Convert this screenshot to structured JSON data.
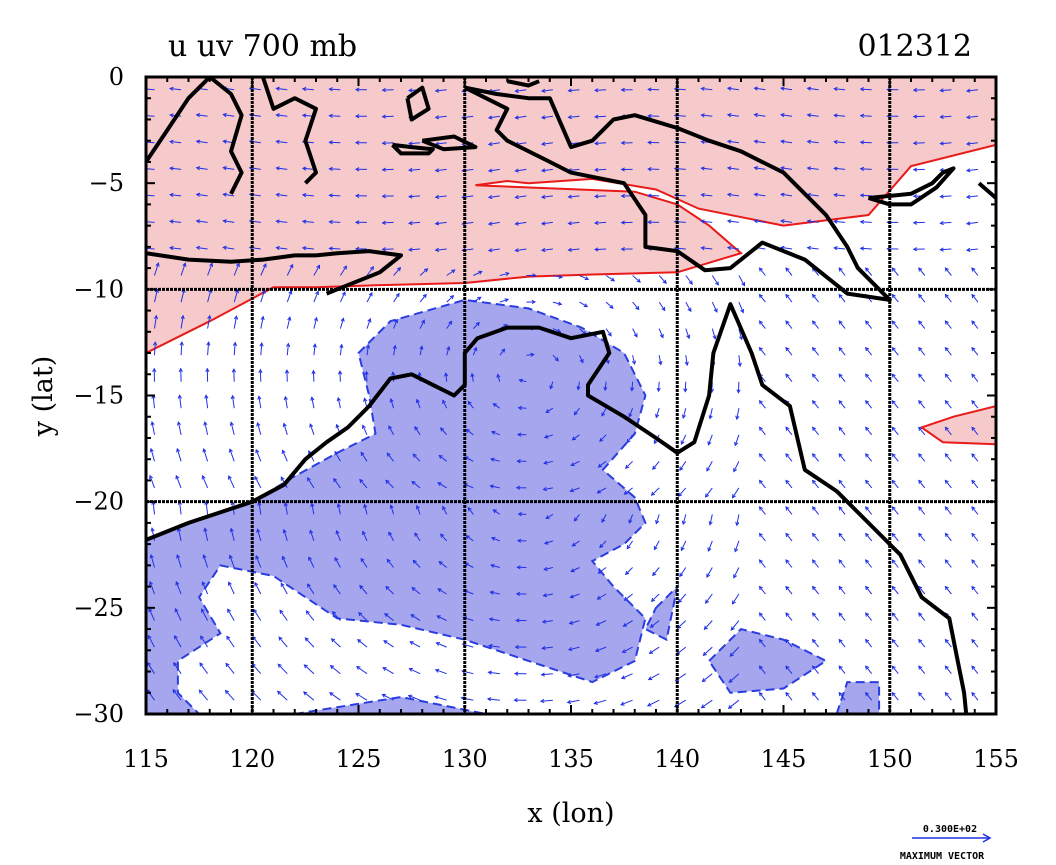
{
  "title_left": "u uv 700 mb",
  "title_right": "012312",
  "xlabel": "x (lon)",
  "ylabel": "y (lat)",
  "x_ticks": [
    115,
    120,
    125,
    130,
    135,
    140,
    145,
    150,
    155
  ],
  "y_ticks": [
    0,
    -5,
    -10,
    -15,
    -20,
    -25,
    -30
  ],
  "grid_x": [
    120,
    130,
    140,
    150
  ],
  "grid_y": [
    -10,
    -20
  ],
  "extent": {
    "lon": [
      115,
      155
    ],
    "lat": [
      -30,
      0
    ]
  },
  "legend": {
    "value": "0.300E+02",
    "label": "MAXIMUM VECTOR"
  },
  "colors": {
    "positive_fill": "#f6caca",
    "positive_contour": "#e81a1a",
    "negative_fill": "#a6a6ee",
    "negative_contour": "#2a3de0",
    "vectors": "#2030e6",
    "coastline": "#000000"
  },
  "map_data": {
    "type": "contour_vector_map",
    "field": "u",
    "vectors": "uv",
    "level": "700 mb",
    "positive_regions": [
      [
        [
          115,
          0
        ],
        [
          155,
          0
        ],
        [
          155,
          -3.2
        ],
        [
          151,
          -4.2
        ],
        [
          149,
          -6.5
        ],
        [
          145,
          -7.0
        ],
        [
          141,
          -6.2
        ],
        [
          139,
          -5.3
        ],
        [
          136,
          -4.8
        ],
        [
          133,
          -5.0
        ],
        [
          132,
          -4.9
        ],
        [
          130.5,
          -5.1
        ],
        [
          138,
          -5.4
        ],
        [
          140,
          -6.0
        ],
        [
          141.5,
          -7.0
        ],
        [
          143,
          -8.3
        ],
        [
          140,
          -9.2
        ],
        [
          136,
          -9.3
        ],
        [
          133,
          -9.4
        ],
        [
          130,
          -9.7
        ],
        [
          126,
          -9.8
        ],
        [
          123,
          -9.9
        ],
        [
          121,
          -9.9
        ],
        [
          118,
          -11.5
        ],
        [
          115,
          -13.0
        ]
      ],
      [
        [
          155,
          -15.5
        ],
        [
          153,
          -16.0
        ],
        [
          151.5,
          -16.5
        ],
        [
          152.5,
          -17.2
        ],
        [
          155,
          -17.3
        ]
      ]
    ],
    "negative_regions": [
      [
        [
          115,
          -21.8
        ],
        [
          117,
          -21.0
        ],
        [
          120,
          -20.0
        ],
        [
          122,
          -18.8
        ],
        [
          124,
          -17.7
        ],
        [
          125.8,
          -16.8
        ],
        [
          125.5,
          -15.0
        ],
        [
          125.0,
          -13.0
        ],
        [
          126.5,
          -11.5
        ],
        [
          130,
          -10.5
        ],
        [
          133,
          -10.9
        ],
        [
          135.5,
          -11.8
        ],
        [
          137.5,
          -13.0
        ],
        [
          138.5,
          -15.0
        ],
        [
          138.0,
          -16.8
        ],
        [
          136.5,
          -18.5
        ],
        [
          138,
          -19.8
        ],
        [
          138.5,
          -21.0
        ],
        [
          137.5,
          -22.0
        ],
        [
          136,
          -22.8
        ],
        [
          137,
          -24.0
        ],
        [
          138.5,
          -25.5
        ],
        [
          138,
          -27.5
        ],
        [
          136,
          -28.5
        ],
        [
          133,
          -27.5
        ],
        [
          130,
          -26.5
        ],
        [
          127,
          -25.8
        ],
        [
          124,
          -25.5
        ],
        [
          121,
          -23.5
        ],
        [
          118.5,
          -23.0
        ],
        [
          117.5,
          -24.5
        ],
        [
          118.5,
          -26.2
        ],
        [
          116.5,
          -27.5
        ],
        [
          116.5,
          -29.0
        ],
        [
          117.5,
          -30.0
        ],
        [
          115,
          -30.0
        ]
      ],
      [
        [
          141.5,
          -27.5
        ],
        [
          143,
          -26.0
        ],
        [
          145,
          -26.5
        ],
        [
          147,
          -27.5
        ],
        [
          145,
          -28.8
        ],
        [
          142.5,
          -29.0
        ]
      ],
      [
        [
          139,
          -25.0
        ],
        [
          140,
          -24.0
        ],
        [
          139.5,
          -26.5
        ],
        [
          138.5,
          -26.0
        ]
      ],
      [
        [
          147.5,
          -30.0
        ],
        [
          148,
          -28.5
        ],
        [
          149.5,
          -28.5
        ],
        [
          149.5,
          -30.0
        ]
      ],
      [
        [
          122,
          -30.0
        ],
        [
          127,
          -29.2
        ],
        [
          131,
          -30.0
        ]
      ]
    ],
    "coastlines": [
      [
        [
          115,
          -21.8
        ],
        [
          117,
          -21.0
        ],
        [
          120,
          -20.0
        ],
        [
          121.5,
          -19.2
        ],
        [
          122.5,
          -18.0
        ],
        [
          123.5,
          -17.2
        ],
        [
          124.5,
          -16.5
        ],
        [
          125.5,
          -15.5
        ],
        [
          126.5,
          -14.2
        ],
        [
          127.5,
          -14.0
        ],
        [
          128.5,
          -14.5
        ],
        [
          129.5,
          -15.0
        ],
        [
          130.0,
          -14.5
        ],
        [
          130.0,
          -13.0
        ],
        [
          130.6,
          -12.3
        ],
        [
          132,
          -11.8
        ],
        [
          133.5,
          -11.8
        ],
        [
          135,
          -12.3
        ],
        [
          136.5,
          -12.0
        ],
        [
          136.8,
          -13.0
        ],
        [
          135.8,
          -14.5
        ],
        [
          135.8,
          -15.0
        ],
        [
          137.5,
          -16.0
        ],
        [
          139,
          -17.0
        ],
        [
          140.0,
          -17.7
        ],
        [
          140.8,
          -17.2
        ],
        [
          141.5,
          -15.0
        ],
        [
          141.7,
          -13.0
        ],
        [
          142.5,
          -10.7
        ],
        [
          143.5,
          -13.0
        ],
        [
          144,
          -14.5
        ],
        [
          145.3,
          -15.5
        ],
        [
          146.0,
          -18.5
        ],
        [
          147.5,
          -19.5
        ],
        [
          149.5,
          -21.5
        ],
        [
          150.5,
          -22.5
        ],
        [
          151.5,
          -24.5
        ],
        [
          152.8,
          -25.5
        ],
        [
          153.2,
          -27.5
        ],
        [
          153.5,
          -29.0
        ],
        [
          153.6,
          -30.0
        ]
      ],
      [
        [
          115,
          -8.3
        ],
        [
          117,
          -8.6
        ],
        [
          119,
          -8.7
        ],
        [
          120.5,
          -8.6
        ],
        [
          122,
          -8.4
        ],
        [
          123,
          -8.4
        ],
        [
          124,
          -8.3
        ],
        [
          125.5,
          -8.2
        ],
        [
          127,
          -8.4
        ],
        [
          126,
          -9.2
        ],
        [
          124,
          -10.0
        ],
        [
          123.5,
          -10.2
        ]
      ],
      [
        [
          115,
          -4.0
        ],
        [
          116,
          -2.5
        ],
        [
          117,
          -1.0
        ],
        [
          118,
          0
        ],
        [
          119,
          -0.8
        ],
        [
          119.5,
          -1.8
        ],
        [
          119,
          -3.5
        ],
        [
          119.5,
          -4.5
        ],
        [
          119,
          -5.5
        ]
      ],
      [
        [
          120.5,
          0
        ],
        [
          121,
          -1.5
        ],
        [
          122,
          -1.0
        ],
        [
          123,
          -1.5
        ],
        [
          122.5,
          -3.0
        ],
        [
          123,
          -4.5
        ],
        [
          122.5,
          -5.0
        ]
      ],
      [
        [
          130,
          -0.5
        ],
        [
          131.5,
          -0.8
        ],
        [
          133,
          -1.0
        ],
        [
          134,
          -1.0
        ],
        [
          135,
          -3.3
        ],
        [
          136,
          -3.0
        ],
        [
          137,
          -2.0
        ],
        [
          138,
          -1.8
        ],
        [
          140,
          -2.4
        ],
        [
          141.5,
          -3.0
        ],
        [
          143,
          -3.5
        ],
        [
          145,
          -4.5
        ],
        [
          146,
          -5.5
        ],
        [
          147,
          -6.5
        ],
        [
          148,
          -8.0
        ],
        [
          148.5,
          -9.0
        ],
        [
          149.5,
          -10.0
        ],
        [
          150,
          -10.5
        ],
        [
          148,
          -10.2
        ],
        [
          146,
          -8.6
        ],
        [
          144,
          -7.8
        ],
        [
          142.5,
          -9.0
        ],
        [
          141.3,
          -9.1
        ],
        [
          140,
          -8.2
        ],
        [
          138.5,
          -8.0
        ],
        [
          138.5,
          -6.5
        ],
        [
          137.5,
          -5.0
        ],
        [
          135,
          -4.5
        ],
        [
          134,
          -4.0
        ],
        [
          132,
          -3.0
        ],
        [
          131.5,
          -2.5
        ],
        [
          132,
          -1.5
        ],
        [
          130,
          -0.5
        ]
      ],
      [
        [
          149,
          -5.7
        ],
        [
          151,
          -5.5
        ],
        [
          152,
          -5.0
        ],
        [
          152.5,
          -4.5
        ],
        [
          153,
          -4.3
        ],
        [
          152.2,
          -5.2
        ],
        [
          151,
          -6.0
        ],
        [
          150,
          -6.0
        ],
        [
          149,
          -5.7
        ]
      ],
      [
        [
          154.2,
          -5.0
        ],
        [
          155,
          -5.7
        ]
      ],
      [
        [
          126.6,
          -3.2
        ],
        [
          127.5,
          -3.3
        ],
        [
          128.5,
          -3.4
        ],
        [
          128.3,
          -3.6
        ],
        [
          127,
          -3.6
        ],
        [
          126.6,
          -3.2
        ]
      ],
      [
        [
          128,
          -3.0
        ],
        [
          129.5,
          -2.8
        ],
        [
          130.5,
          -3.3
        ],
        [
          129,
          -3.4
        ],
        [
          128,
          -3.0
        ]
      ],
      [
        [
          132,
          -0.2
        ],
        [
          133,
          -0.4
        ],
        [
          133.5,
          -0.2
        ]
      ],
      [
        [
          127.3,
          -1.0
        ],
        [
          128,
          -0.5
        ],
        [
          128.3,
          -1.5
        ],
        [
          127.5,
          -2.0
        ],
        [
          127.3,
          -1.0
        ]
      ]
    ]
  }
}
